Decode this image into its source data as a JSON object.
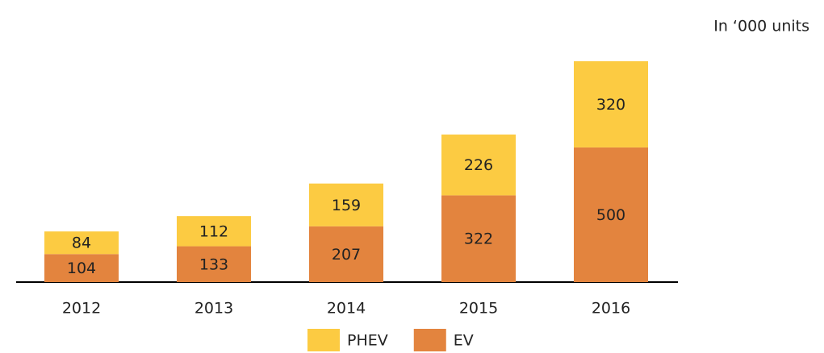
{
  "chart_data": {
    "type": "bar",
    "stacked": true,
    "subtitle": "In ‘000 units",
    "categories": [
      "2012",
      "2013",
      "2014",
      "2015",
      "2016"
    ],
    "series": [
      {
        "name": "EV",
        "color": "#e3843e",
        "values": [
          104,
          133,
          207,
          322,
          500
        ]
      },
      {
        "name": "PHEV",
        "color": "#fccb42",
        "values": [
          84,
          112,
          159,
          226,
          320
        ]
      }
    ],
    "legend": "bottom"
  }
}
